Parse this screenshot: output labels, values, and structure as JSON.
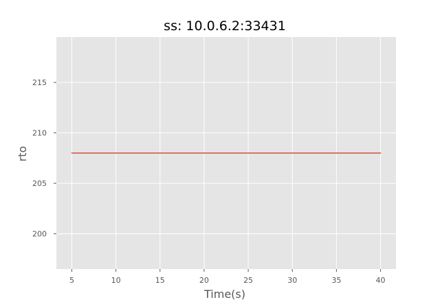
{
  "chart_data": {
    "type": "line",
    "title": "ss: 10.0.6.2:33431",
    "xlabel": "Time(s)",
    "ylabel": "rto",
    "xlim": [
      3.25,
      41.75
    ],
    "ylim": [
      196.5,
      219.5
    ],
    "xticks": [
      5,
      10,
      15,
      20,
      25,
      30,
      35,
      40
    ],
    "yticks": [
      200,
      205,
      210,
      215
    ],
    "grid": true,
    "series": [
      {
        "color": "#e24a33",
        "x": [
          5,
          10,
          15,
          20,
          25,
          30,
          35,
          40
        ],
        "y": [
          208,
          208,
          208,
          208,
          208,
          208,
          208,
          208
        ]
      }
    ]
  },
  "colors": {
    "plot_background": "#e5e5e5",
    "grid": "#ffffff",
    "tick": "#555555"
  }
}
